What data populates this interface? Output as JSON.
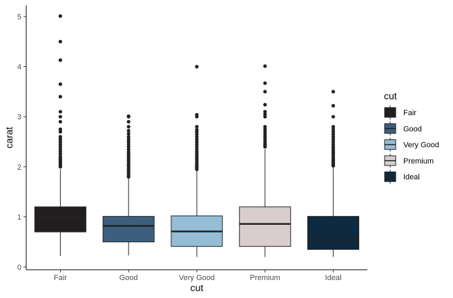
{
  "chart_data": {
    "type": "boxplot",
    "title": "",
    "xlabel": "cut",
    "ylabel": "carat",
    "ylim": [
      -0.05,
      5.23
    ],
    "yticks": [
      0,
      1,
      2,
      3,
      4,
      5
    ],
    "grid": false,
    "legend": {
      "title": "cut",
      "position": "right"
    },
    "categories": [
      "Fair",
      "Good",
      "Very Good",
      "Premium",
      "Ideal"
    ],
    "series": [
      {
        "category": "Fair",
        "color": "#221e1f",
        "whisker_low": 0.22,
        "q1": 0.7,
        "median": 1.0,
        "q3": 1.2,
        "whisker_high": 1.95,
        "outliers": [
          2.0,
          2.02,
          2.05,
          2.08,
          2.1,
          2.13,
          2.16,
          2.2,
          2.25,
          2.3,
          2.35,
          2.4,
          2.45,
          2.5,
          2.55,
          2.6,
          2.7,
          2.75,
          2.9,
          3.0,
          3.1,
          3.4,
          3.65,
          4.13,
          4.5,
          5.01
        ]
      },
      {
        "category": "Good",
        "color": "#3d5f7d",
        "whisker_low": 0.23,
        "q1": 0.5,
        "median": 0.82,
        "q3": 1.01,
        "whisker_high": 1.77,
        "outliers": [
          1.8,
          1.83,
          1.86,
          1.9,
          1.93,
          1.96,
          2.0,
          2.03,
          2.06,
          2.1,
          2.14,
          2.18,
          2.22,
          2.26,
          2.3,
          2.35,
          2.4,
          2.45,
          2.5,
          2.55,
          2.6,
          2.66,
          2.72,
          2.8,
          2.9,
          3.0,
          3.01
        ]
      },
      {
        "category": "Very Good",
        "color": "#95bed6",
        "whisker_low": 0.2,
        "q1": 0.41,
        "median": 0.71,
        "q3": 1.02,
        "whisker_high": 1.92,
        "outliers": [
          1.95,
          1.98,
          2.0,
          2.03,
          2.06,
          2.1,
          2.14,
          2.18,
          2.22,
          2.26,
          2.3,
          2.35,
          2.4,
          2.45,
          2.5,
          2.55,
          2.6,
          2.65,
          2.7,
          2.74,
          2.8,
          3.0,
          3.04,
          4.0
        ]
      },
      {
        "category": "Premium",
        "color": "#d9cecd",
        "whisker_low": 0.2,
        "q1": 0.41,
        "median": 0.86,
        "q3": 1.2,
        "whisker_high": 2.35,
        "outliers": [
          2.4,
          2.43,
          2.46,
          2.5,
          2.55,
          2.6,
          2.65,
          2.7,
          2.75,
          2.8,
          3.0,
          3.05,
          3.1,
          3.24,
          3.5,
          3.67,
          4.01
        ]
      },
      {
        "category": "Ideal",
        "color": "#0d2a40",
        "whisker_low": 0.2,
        "q1": 0.35,
        "median": 0.54,
        "q3": 1.01,
        "whisker_high": 2.0,
        "outliers": [
          2.02,
          2.05,
          2.08,
          2.1,
          2.13,
          2.16,
          2.2,
          2.24,
          2.28,
          2.32,
          2.36,
          2.4,
          2.45,
          2.5,
          2.55,
          2.6,
          2.65,
          2.7,
          2.75,
          2.8,
          3.0,
          3.22,
          3.5
        ]
      }
    ]
  }
}
